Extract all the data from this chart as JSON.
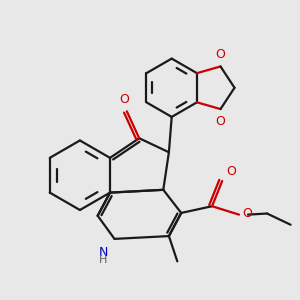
{
  "bg_color": "#e8e8e8",
  "bond_color": "#1a1a1a",
  "o_color": "#cc0000",
  "n_color": "#0000cc",
  "lw": 1.6,
  "figsize": [
    3.0,
    3.0
  ],
  "dpi": 100,
  "xlim": [
    -2.5,
    2.8
  ],
  "ylim": [
    -2.3,
    2.5
  ]
}
